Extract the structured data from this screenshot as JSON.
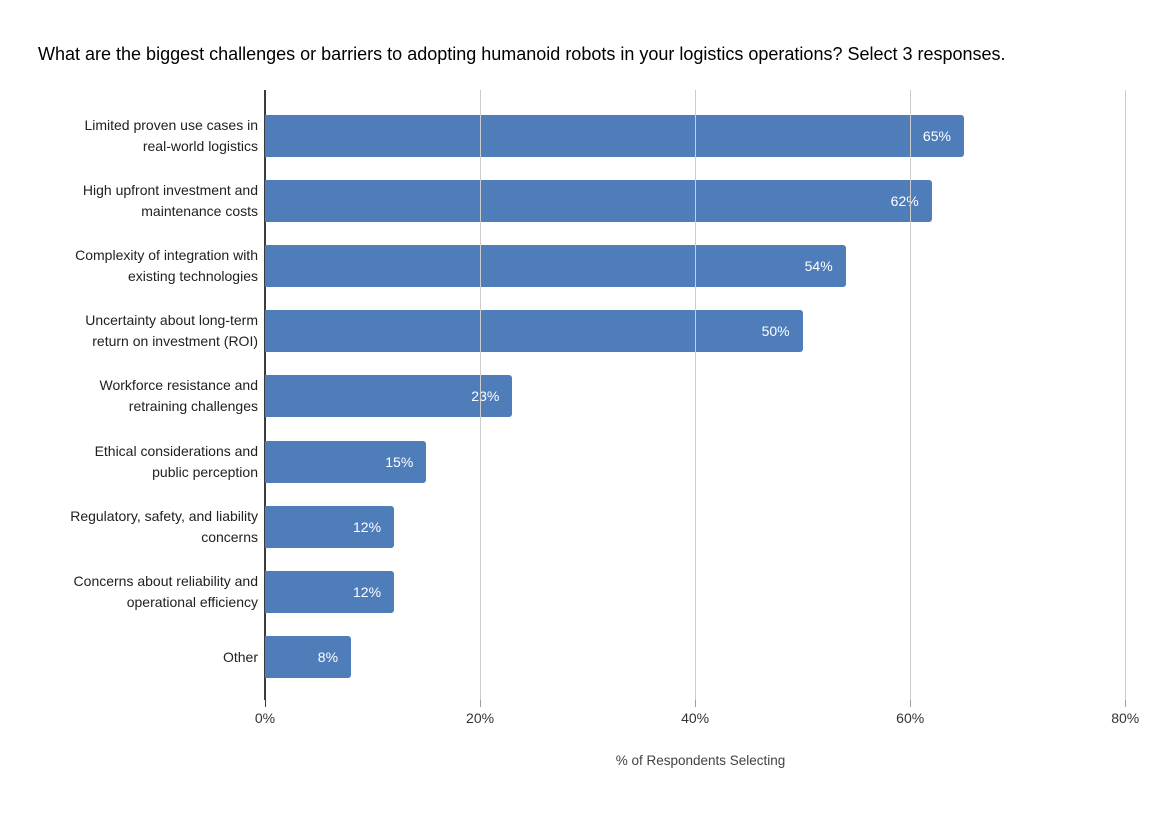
{
  "chart_data": {
    "type": "bar",
    "orientation": "horizontal",
    "title": "What are the biggest challenges or barriers to adopting humanoid robots in your logistics operations? Select 3 responses.",
    "xlabel": "% of Respondents Selecting",
    "ylabel": "",
    "categories": [
      "Limited proven use cases in\nreal-world logistics",
      "High upfront investment and\nmaintenance costs",
      "Complexity of integration with\nexisting technologies",
      "Uncertainty about long-term\nreturn on investment (ROI)",
      "Workforce resistance and\nretraining challenges",
      "Ethical considerations and\npublic perception",
      "Regulatory, safety, and liability\nconcerns",
      "Concerns about reliability and\noperational efficiency",
      "Other"
    ],
    "values": [
      65,
      62,
      54,
      50,
      23,
      15,
      12,
      12,
      8
    ],
    "value_labels": [
      "65%",
      "62%",
      "54%",
      "50%",
      "23%",
      "15%",
      "12%",
      "12%",
      "8%"
    ],
    "xticks": [
      {
        "value": 0,
        "label": "0%"
      },
      {
        "value": 20,
        "label": "20%"
      },
      {
        "value": 40,
        "label": "40%"
      },
      {
        "value": 60,
        "label": "60%"
      },
      {
        "value": 80,
        "label": "80%"
      }
    ],
    "xlim": [
      0,
      81
    ],
    "grid": true,
    "legend": "none",
    "colors": {
      "bar": "#4e7dba",
      "value_label": "#ffffff",
      "gridline": "#cccccc",
      "axis": "#3c3c3c",
      "tick_zero": "#3c3c3c",
      "tick": "#9e9e9e"
    }
  }
}
